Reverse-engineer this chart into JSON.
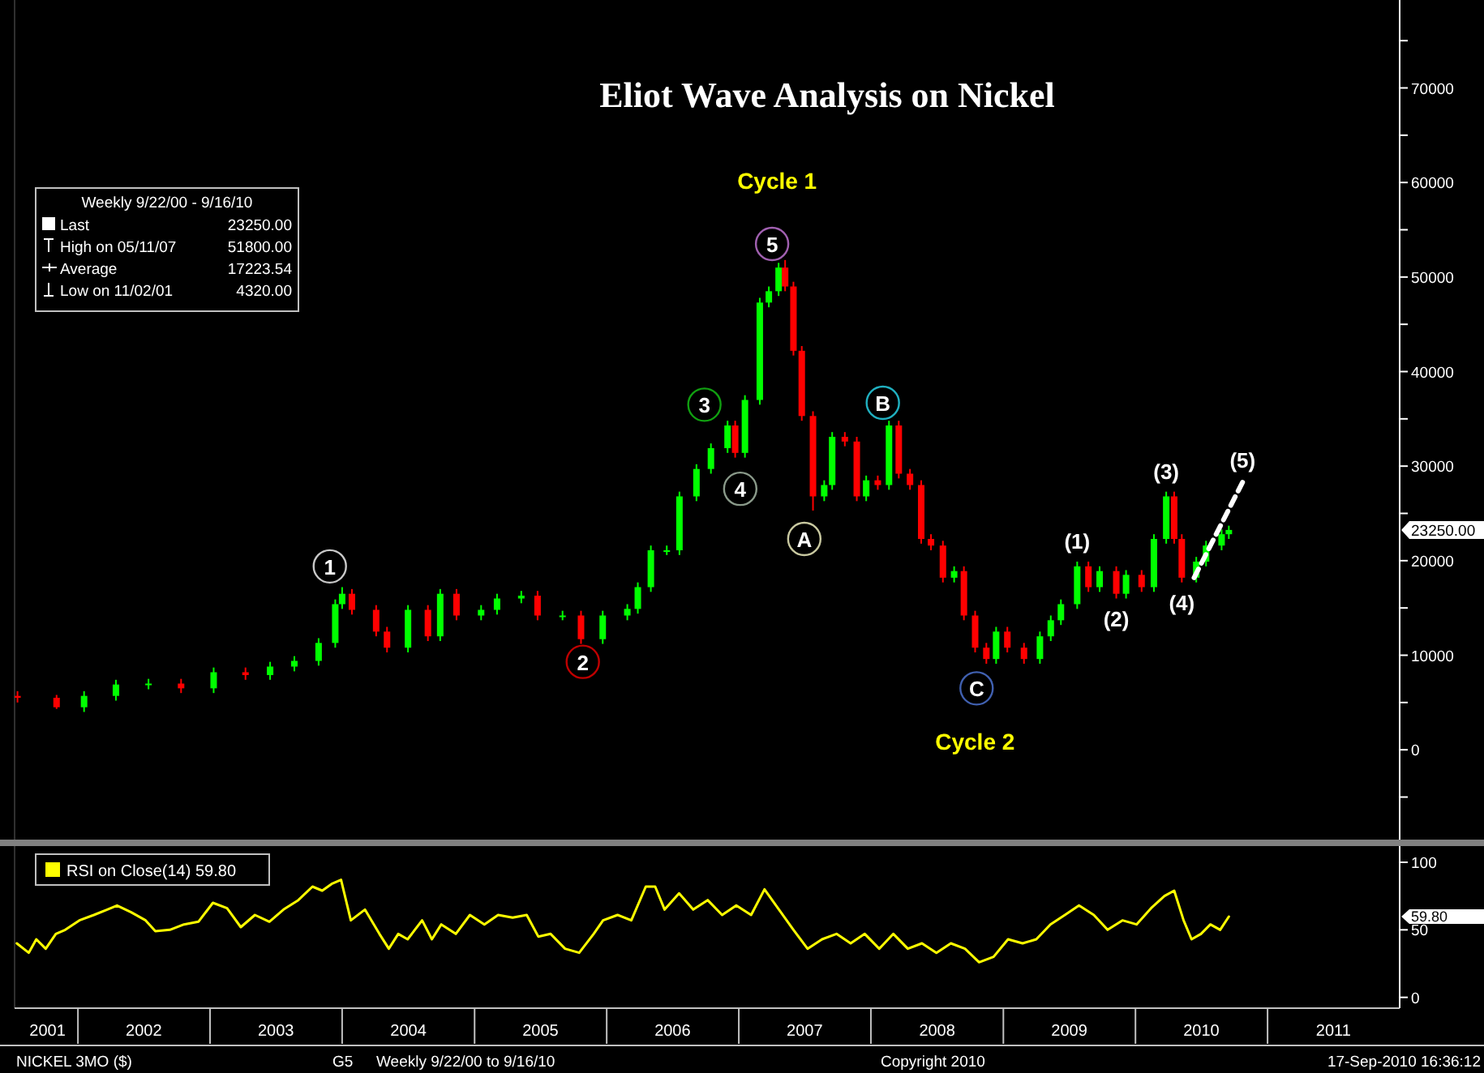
{
  "chart_data": [
    {
      "type": "candlestick",
      "title": "Eliot Wave Analysis on Nickel",
      "xlim": [
        "2001-07-10",
        "2012-01-01"
      ],
      "ylim": [
        -9500,
        79300
      ],
      "tick_labels": "y",
      "line_style": "dashed",
      "yticks": [
        {
          "value": -5000,
          "label": null
        },
        0,
        {
          "value": 5000,
          "label": null
        },
        10000,
        {
          "value": 15000,
          "label": null
        },
        20000,
        {
          "value": 25000,
          "label": null
        },
        30000,
        {
          "value": 35000,
          "label": null
        },
        40000,
        {
          "value": 45000,
          "label": null
        },
        50000,
        {
          "value": 55000,
          "label": null
        },
        60000,
        {
          "value": 65000,
          "label": null
        },
        70000,
        {
          "value": 75000,
          "label": null
        }
      ],
      "x": [
        "2001-07-18",
        "2001-11-03",
        "2002-01-18",
        "2002-04-16",
        "2002-07-15",
        "2002-10-13",
        "2003-01-11",
        "2003-04-09",
        "2003-06-16",
        "2003-08-22",
        "2003-10-28",
        "2003-12-13",
        "2004-01-01",
        "2004-01-28",
        "2004-04-04",
        "2004-05-04",
        "2004-07-01",
        "2004-08-25",
        "2004-09-28",
        "2004-11-12",
        "2005-01-19",
        "2005-03-04",
        "2005-05-10",
        "2005-06-24",
        "2005-09-01",
        "2005-10-22",
        "2005-12-21",
        "2006-02-27",
        "2006-03-28",
        "2006-05-03",
        "2006-06-16",
        "2006-07-21",
        "2006-09-06",
        "2006-10-16",
        "2006-12-01",
        "2006-12-22",
        "2007-01-18",
        "2007-02-28",
        "2007-03-25",
        "2007-04-21",
        "2007-05-09",
        "2007-06-01",
        "2007-06-24",
        "2007-07-25",
        "2007-08-25",
        "2007-09-16",
        "2007-10-21",
        "2007-11-23",
        "2007-12-19",
        "2008-01-20",
        "2008-02-20",
        "2008-03-18",
        "2008-04-18",
        "2008-05-19",
        "2008-06-15",
        "2008-07-18",
        "2008-08-18",
        "2008-09-14",
        "2008-10-15",
        "2008-11-15",
        "2008-12-12",
        "2009-01-12",
        "2009-02-27",
        "2009-04-12",
        "2009-05-12",
        "2009-06-09",
        "2009-07-24",
        "2009-08-24",
        "2009-09-24",
        "2009-11-09",
        "2009-12-06",
        "2010-01-18",
        "2010-02-21",
        "2010-03-27",
        "2010-04-18",
        "2010-05-09",
        "2010-06-18",
        "2010-07-15",
        "2010-08-27",
        "2010-09-16"
      ],
      "ohlc": [
        [
          5700,
          6200,
          5000,
          5500
        ],
        [
          5500,
          5800,
          4320,
          4500
        ],
        [
          4500,
          6200,
          4000,
          5700
        ],
        [
          5700,
          7400,
          5200,
          6900
        ],
        [
          6900,
          7500,
          6400,
          7000
        ],
        [
          7000,
          7500,
          6000,
          6500
        ],
        [
          6500,
          8700,
          6000,
          8200
        ],
        [
          8200,
          8700,
          7400,
          7900
        ],
        [
          7900,
          9300,
          7400,
          8800
        ],
        [
          8800,
          9900,
          8300,
          9400
        ],
        [
          9400,
          11800,
          8900,
          11300
        ],
        [
          11300,
          15900,
          10800,
          15400
        ],
        [
          15400,
          17200,
          14900,
          16500
        ],
        [
          16500,
          17000,
          14300,
          14800
        ],
        [
          14800,
          15300,
          12000,
          12500
        ],
        [
          12500,
          13000,
          10300,
          10800
        ],
        [
          10800,
          15300,
          10300,
          14800
        ],
        [
          14800,
          15300,
          11500,
          12000
        ],
        [
          12000,
          17000,
          11500,
          16500
        ],
        [
          16500,
          17000,
          13700,
          14200
        ],
        [
          14200,
          15300,
          13700,
          14800
        ],
        [
          14800,
          16500,
          14300,
          16000
        ],
        [
          16000,
          16800,
          15500,
          16300
        ],
        [
          16300,
          16800,
          13700,
          14200
        ],
        [
          14200,
          14700,
          13700,
          14200
        ],
        [
          14200,
          14700,
          11200,
          11700
        ],
        [
          11700,
          14700,
          11200,
          14200
        ],
        [
          14200,
          15400,
          13700,
          14900
        ],
        [
          14900,
          17700,
          14400,
          17200
        ],
        [
          17200,
          21600,
          16700,
          21100
        ],
        [
          21100,
          21600,
          20600,
          21100
        ],
        [
          21100,
          27300,
          20600,
          26800
        ],
        [
          26800,
          30200,
          26300,
          29700
        ],
        [
          29700,
          32400,
          29200,
          31900
        ],
        [
          31900,
          34800,
          31400,
          34300
        ],
        [
          34300,
          34800,
          30900,
          31400
        ],
        [
          31400,
          37500,
          30900,
          37000
        ],
        [
          37000,
          47800,
          36500,
          47300
        ],
        [
          47300,
          49000,
          46800,
          48500
        ],
        [
          48500,
          51500,
          48000,
          51000
        ],
        [
          51000,
          51800,
          48500,
          49000
        ],
        [
          49000,
          49500,
          41700,
          42200
        ],
        [
          42200,
          42700,
          34800,
          35300
        ],
        [
          35300,
          35800,
          25300,
          26800
        ],
        [
          26800,
          28500,
          26300,
          28000
        ],
        [
          28000,
          33600,
          27500,
          33100
        ],
        [
          33100,
          33600,
          32100,
          32600
        ],
        [
          32600,
          33100,
          26300,
          26800
        ],
        [
          26800,
          29000,
          26300,
          28500
        ],
        [
          28500,
          29000,
          27500,
          28000
        ],
        [
          28000,
          34800,
          27500,
          34300
        ],
        [
          34300,
          34800,
          28700,
          29200
        ],
        [
          29200,
          29700,
          27500,
          28000
        ],
        [
          28000,
          28500,
          21800,
          22300
        ],
        [
          22300,
          22800,
          21100,
          21600
        ],
        [
          21600,
          22100,
          17700,
          18200
        ],
        [
          18200,
          19400,
          17700,
          18900
        ],
        [
          18900,
          19400,
          13700,
          14200
        ],
        [
          14200,
          14700,
          10300,
          10800
        ],
        [
          10800,
          11300,
          9100,
          9600
        ],
        [
          9600,
          13000,
          9100,
          12500
        ],
        [
          12500,
          13000,
          10300,
          10800
        ],
        [
          10800,
          11300,
          9100,
          9600
        ],
        [
          9600,
          12500,
          9100,
          12000
        ],
        [
          12000,
          14200,
          11500,
          13700
        ],
        [
          13700,
          15900,
          13200,
          15400
        ],
        [
          15400,
          19900,
          14900,
          19400
        ],
        [
          19400,
          19900,
          16700,
          17200
        ],
        [
          17200,
          19400,
          16700,
          18900
        ],
        [
          18900,
          19400,
          16000,
          16500
        ],
        [
          16500,
          19000,
          16000,
          18500
        ],
        [
          18500,
          19000,
          16700,
          17200
        ],
        [
          17200,
          22800,
          16700,
          22300
        ],
        [
          22300,
          27300,
          21800,
          26800
        ],
        [
          26800,
          27300,
          21800,
          22300
        ],
        [
          22300,
          22800,
          17700,
          18200
        ],
        [
          18200,
          20400,
          17700,
          19900
        ],
        [
          19900,
          22100,
          19400,
          21600
        ],
        [
          21600,
          23300,
          21100,
          22800
        ],
        [
          22800,
          23700,
          22300,
          23250
        ]
      ],
      "series": [
        {
          "type": "line",
          "color": "#ffffff",
          "x": [
            "2010-06-12",
            "2010-10-24"
          ],
          "values": [
            18200,
            28300
          ]
        }
      ],
      "annotations": [
        {
          "text": "1",
          "x": "2003-11-28",
          "y": 19400
        },
        {
          "text": "2",
          "x": "2005-10-27",
          "y": 9300
        },
        {
          "text": "3",
          "x": "2006-09-28",
          "y": 36500
        },
        {
          "text": "4",
          "x": "2007-01-05",
          "y": 27600
        },
        {
          "text": "5",
          "x": "2007-04-03",
          "y": 53500
        },
        {
          "text": "A",
          "x": "2007-07-01",
          "y": 22300
        },
        {
          "text": "B",
          "x": "2008-02-03",
          "y": 36700
        },
        {
          "text": "C",
          "x": "2008-10-19",
          "y": 6500
        },
        {
          "text": "(1)",
          "x": "2009-07-24",
          "y": 19900
        },
        {
          "text": "(2)",
          "x": "2009-11-09",
          "y": 16000
        },
        {
          "text": "(3)",
          "x": "2010-03-27",
          "y": 27300
        },
        {
          "text": "(4)",
          "x": "2010-05-09",
          "y": 17700
        },
        {
          "text": "(5)",
          "x": "2010-10-24",
          "y": 28300
        },
        "Cycle 1",
        "Cycle 2",
        "23250.00",
        "Weekly 9/22/00 - 9/16/10",
        "Last",
        "23250.00",
        "High on 05/11/07",
        "51800.00",
        "Average",
        "17223.54",
        "Low on 11/02/01",
        "4320.00"
      ]
    },
    {
      "type": "line",
      "xlim": [
        "2001-07-10",
        "2012-01-01"
      ],
      "ylim": [
        -8,
        112
      ],
      "yticks": [
        0,
        50,
        100
      ],
      "legend": "top left",
      "xticks": [
        {
          "value": "2001-10-09",
          "label": "2001"
        },
        {
          "value": "2002-07-02",
          "label": "2002"
        },
        {
          "value": "2003-07-02",
          "label": "2003"
        },
        {
          "value": "2004-07-02",
          "label": "2004"
        },
        {
          "value": "2005-07-02",
          "label": "2005"
        },
        {
          "value": "2006-07-02",
          "label": "2006"
        },
        {
          "value": "2007-07-02",
          "label": "2007"
        },
        {
          "value": "2008-07-02",
          "label": "2008"
        },
        {
          "value": "2009-07-02",
          "label": "2009"
        },
        {
          "value": "2010-07-02",
          "label": "2010"
        },
        {
          "value": "2011-07-02",
          "label": "2011"
        }
      ],
      "series": [
        {
          "name": "RSI on Close(14) 59.80",
          "color": "#ffff00",
          "x": [
            "2001-07-16",
            "2001-08-18",
            "2001-09-08",
            "2001-10-04",
            "2001-11-01",
            "2001-11-27",
            "2002-01-05",
            "2002-02-14",
            "2002-03-23",
            "2002-04-19",
            "2002-05-28",
            "2002-07-07",
            "2002-08-03",
            "2002-09-12",
            "2002-10-21",
            "2002-11-30",
            "2003-01-09",
            "2003-02-17",
            "2003-03-27",
            "2003-05-05",
            "2003-06-14",
            "2003-07-23",
            "2003-09-02",
            "2003-10-11",
            "2003-11-07",
            "2003-12-03",
            "2003-12-29",
            "2004-01-25",
            "2004-03-04",
            "2004-04-13",
            "2004-05-09",
            "2004-06-04",
            "2004-06-30",
            "2004-08-09",
            "2004-09-05",
            "2004-10-01",
            "2004-11-10",
            "2004-12-19",
            "2005-01-28",
            "2005-03-07",
            "2005-04-16",
            "2005-05-25",
            "2005-06-26",
            "2005-07-30",
            "2005-09-08",
            "2005-10-17",
            "2005-11-26",
            "2005-12-22",
            "2006-01-31",
            "2006-03-10",
            "2006-04-19",
            "2006-05-15",
            "2006-06-10",
            "2006-07-20",
            "2006-08-28",
            "2006-10-07",
            "2006-11-16",
            "2006-12-25",
            "2007-02-04",
            "2007-03-13",
            "2007-04-22",
            "2007-06-01",
            "2007-07-10",
            "2007-08-19",
            "2007-09-28",
            "2007-11-06",
            "2007-12-15",
            "2008-01-24",
            "2008-03-03",
            "2008-04-12",
            "2008-05-21",
            "2008-06-30",
            "2008-08-09",
            "2008-09-17",
            "2008-10-26",
            "2008-12-05",
            "2009-01-14",
            "2009-02-23",
            "2009-04-02",
            "2009-05-11",
            "2009-06-20",
            "2009-07-29",
            "2009-09-08",
            "2009-10-16",
            "2009-11-26",
            "2010-01-04",
            "2010-02-13",
            "2010-03-22",
            "2010-04-18",
            "2010-05-14",
            "2010-06-05",
            "2010-07-01",
            "2010-07-27",
            "2010-08-23",
            "2010-09-16"
          ],
          "values": [
            40,
            33,
            43,
            36,
            47,
            50,
            57,
            61,
            65,
            68,
            63,
            57,
            49,
            50,
            54,
            56,
            70,
            66,
            52,
            61,
            56,
            65,
            72,
            82,
            79,
            84,
            87,
            57,
            65,
            47,
            36,
            47,
            43,
            57,
            43,
            54,
            47,
            61,
            54,
            61,
            59,
            61,
            45,
            47,
            36,
            33,
            47,
            57,
            61,
            57,
            82,
            82,
            65,
            77,
            65,
            72,
            61,
            68,
            61,
            80,
            65,
            50,
            36,
            43,
            47,
            40,
            47,
            36,
            47,
            36,
            40,
            33,
            40,
            36,
            26,
            30,
            43,
            40,
            43,
            54,
            61,
            68,
            61,
            50,
            57,
            54,
            66,
            75,
            79,
            57,
            43,
            47,
            54,
            50,
            59.8
          ]
        }
      ],
      "annotations": [
        "59.80",
        "NICKEL 3MO ($)",
        "G5",
        "Weekly 9/22/00 to 9/16/10",
        "Copyright 2010",
        "17-Sep-2010 16:36:12"
      ]
    }
  ]
}
